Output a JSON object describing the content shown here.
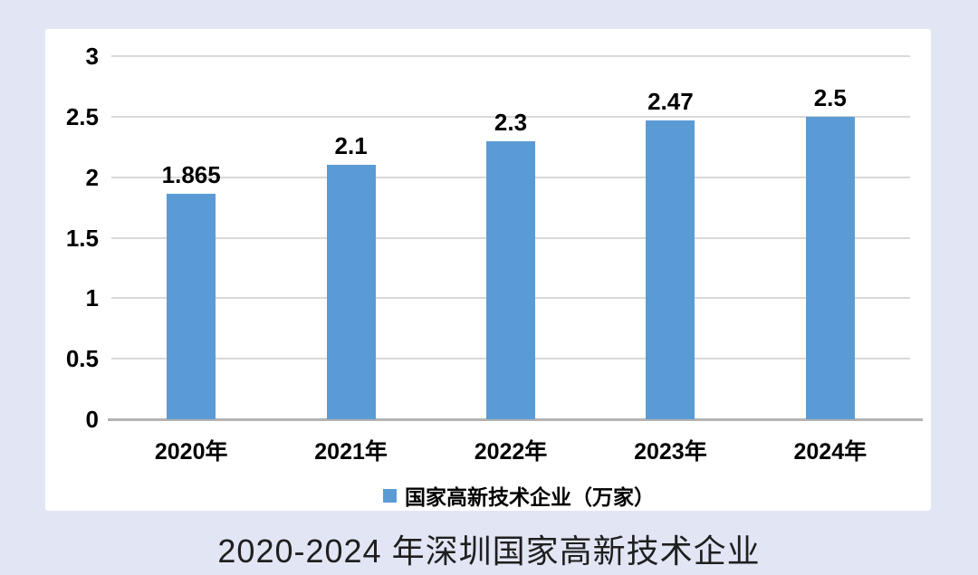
{
  "colors": {
    "page_background": "#E2E6F4",
    "panel_background": "#FFFFFF",
    "bar": "#5B9BD5",
    "grid": "#D9D9D9",
    "axis": "#B3B3B3",
    "label_text": "#000000",
    "caption_text": "#1F1F1F"
  },
  "chart_data": {
    "type": "bar",
    "title": "2020-2024 年深圳国家高新技术企业",
    "categories": [
      "2020年",
      "2021年",
      "2022年",
      "2023年",
      "2024年"
    ],
    "values": [
      1.865,
      2.1,
      2.3,
      2.47,
      2.5
    ],
    "value_labels": [
      "1.865",
      "2.1",
      "2.3",
      "2.47",
      "2.5"
    ],
    "series_name": "国家高新技术企业（万家）",
    "xlabel": "",
    "ylabel": "",
    "ylim": [
      0,
      3
    ],
    "y_ticks": [
      0,
      0.5,
      1,
      1.5,
      2,
      2.5,
      3
    ],
    "y_tick_labels": [
      "0",
      "0.5",
      "1",
      "1.5",
      "2",
      "2.5",
      "3"
    ],
    "grid": true,
    "legend_position": "bottom",
    "bar_color": "#5B9BD5"
  },
  "legend": {
    "label": "国家高新技术企业（万家）"
  },
  "caption": {
    "text": "2020-2024 年深圳国家高新技术企业"
  }
}
